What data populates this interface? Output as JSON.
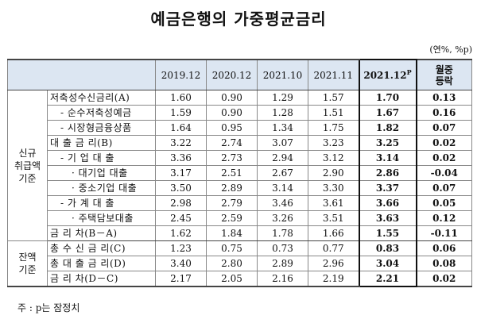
{
  "title": "예금은행의 가중평균금리",
  "unit": "(연%, %p)",
  "table": {
    "headers": {
      "c1": "2019.12",
      "c2": "2020.12",
      "c3": "2021.10",
      "c4": "2021.11",
      "latest": "2021.12",
      "latest_sup": "P",
      "change_line1": "월중",
      "change_line2": "등락"
    },
    "groups": {
      "new_l1": "신규",
      "new_l2": "취급액",
      "new_l3": "기준",
      "bal_l1": "잔액",
      "bal_l2": "기준"
    },
    "rows": [
      {
        "label": "저축성수신금리(A)",
        "v1": "1.60",
        "v2": "0.90",
        "v3": "1.29",
        "v4": "1.57",
        "latest": "1.70",
        "change": "0.13"
      },
      {
        "label": "- 순수저축성예금",
        "v1": "1.59",
        "v2": "0.90",
        "v3": "1.28",
        "v4": "1.51",
        "latest": "1.67",
        "change": "0.16"
      },
      {
        "label": "- 시장형금융상품",
        "v1": "1.64",
        "v2": "0.95",
        "v3": "1.34",
        "v4": "1.75",
        "latest": "1.82",
        "change": "0.07"
      },
      {
        "label": "대 출 금 리(B)",
        "v1": "3.22",
        "v2": "2.74",
        "v3": "3.07",
        "v4": "3.23",
        "latest": "3.25",
        "change": "0.02"
      },
      {
        "label": "- 기 업 대 출",
        "v1": "3.36",
        "v2": "2.73",
        "v3": "2.94",
        "v4": "3.12",
        "latest": "3.14",
        "change": "0.02"
      },
      {
        "label": "· 대기업 대출",
        "v1": "3.17",
        "v2": "2.51",
        "v3": "2.67",
        "v4": "2.90",
        "latest": "2.86",
        "change": "-0.04"
      },
      {
        "label": "· 중소기업 대출",
        "v1": "3.50",
        "v2": "2.89",
        "v3": "3.14",
        "v4": "3.30",
        "latest": "3.37",
        "change": "0.07"
      },
      {
        "label": "- 가 계 대 출",
        "v1": "2.98",
        "v2": "2.79",
        "v3": "3.46",
        "v4": "3.61",
        "latest": "3.66",
        "change": "0.05"
      },
      {
        "label": "· 주택담보대출",
        "v1": "2.45",
        "v2": "2.59",
        "v3": "3.26",
        "v4": "3.51",
        "latest": "3.63",
        "change": "0.12"
      },
      {
        "label": "금 리 차(B－A)",
        "v1": "1.62",
        "v2": "1.84",
        "v3": "1.78",
        "v4": "1.66",
        "latest": "1.55",
        "change": "-0.11"
      },
      {
        "label": "총 수 신 금 리(C)",
        "v1": "1.23",
        "v2": "0.75",
        "v3": "0.73",
        "v4": "0.77",
        "latest": "0.83",
        "change": "0.06"
      },
      {
        "label": "총 대 출 금 리(D)",
        "v1": "3.40",
        "v2": "2.80",
        "v3": "2.89",
        "v4": "2.96",
        "latest": "3.04",
        "change": "0.08"
      },
      {
        "label": "금 리 차(D－C)",
        "v1": "2.17",
        "v2": "2.05",
        "v3": "2.16",
        "v4": "2.19",
        "latest": "2.21",
        "change": "0.02"
      }
    ]
  },
  "note": "주 : p는 잠정치"
}
